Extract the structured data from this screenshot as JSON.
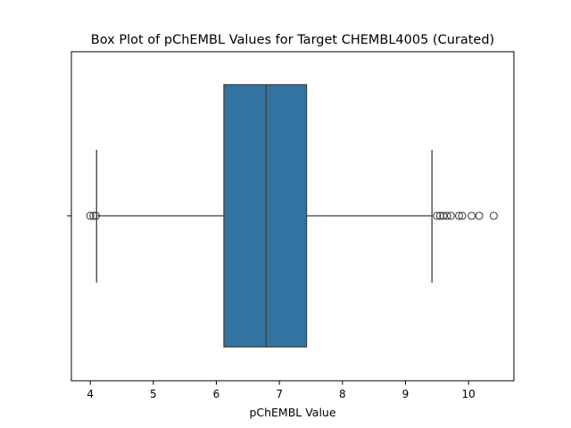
{
  "chart_data": {
    "type": "box",
    "title": "Box Plot of pChEMBL Values for Target CHEMBL4005  (Curated)",
    "xlabel": "pChEMBL Value",
    "ylabel": "",
    "orientation": "horizontal",
    "xlim": [
      3.7,
      10.72
    ],
    "xticks": [
      "4",
      "5",
      "6",
      "7",
      "8",
      "9",
      "10"
    ],
    "grid": false,
    "box": {
      "whisker_low": 4.1,
      "q1": 6.12,
      "median": 6.79,
      "q3": 7.43,
      "whisker_high": 9.42
    },
    "outliers": [
      4.0,
      4.05,
      4.09,
      9.5,
      9.55,
      9.6,
      9.66,
      9.72,
      9.85,
      9.9,
      10.05,
      10.17,
      10.4
    ],
    "colors": {
      "box_fill": "#3274a1",
      "lines": "#3f3f3f",
      "axes": "#000000"
    }
  }
}
